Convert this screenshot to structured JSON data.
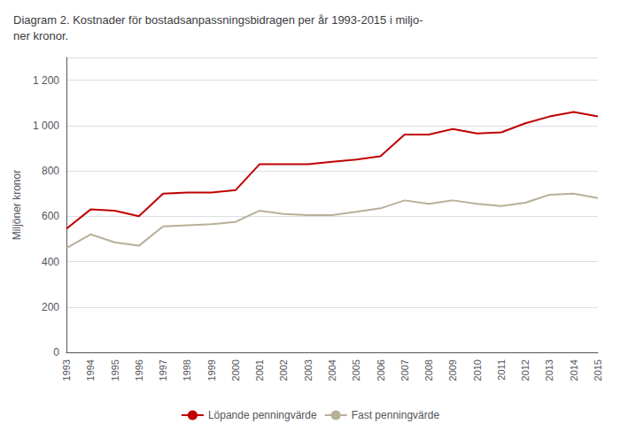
{
  "chart_data": {
    "type": "line",
    "title": "Diagram 2. Kostnader för bostadsanpassningsbidragen per år 1993-2015 i miljo-\nner kronor.",
    "ylabel": "Miljöner kronor",
    "x": [
      1993,
      1994,
      1995,
      1996,
      1997,
      1998,
      1999,
      2000,
      2001,
      2002,
      2003,
      2004,
      2005,
      2006,
      2007,
      2008,
      2009,
      2010,
      2011,
      2012,
      2013,
      2014,
      2015
    ],
    "series": [
      {
        "name": "Löpande penningvärde",
        "color": "#c00000",
        "values": [
          545,
          630,
          625,
          600,
          700,
          705,
          705,
          715,
          830,
          830,
          830,
          840,
          850,
          865,
          960,
          960,
          985,
          965,
          970,
          1010,
          1040,
          1060,
          1040
        ]
      },
      {
        "name": "Fast penningvärde",
        "color": "#b8b09a",
        "values": [
          460,
          520,
          485,
          470,
          555,
          560,
          565,
          575,
          625,
          610,
          605,
          605,
          620,
          635,
          670,
          655,
          670,
          655,
          645,
          660,
          695,
          700,
          680
        ]
      }
    ],
    "xlim": [
      1993,
      2015
    ],
    "xticks": [
      1993,
      1994,
      1995,
      1996,
      1997,
      1998,
      1999,
      2000,
      2001,
      2002,
      2003,
      2004,
      2005,
      2006,
      2007,
      2008,
      2009,
      2010,
      2011,
      2012,
      2013,
      2014,
      2015
    ],
    "ylim": [
      0,
      1300
    ],
    "yticks": [
      0,
      200,
      400,
      600,
      800,
      {
        "value": 1000,
        "label": "1 000"
      },
      {
        "value": 1200,
        "label": "1 200"
      }
    ],
    "grid": true,
    "legend": "bottom"
  }
}
